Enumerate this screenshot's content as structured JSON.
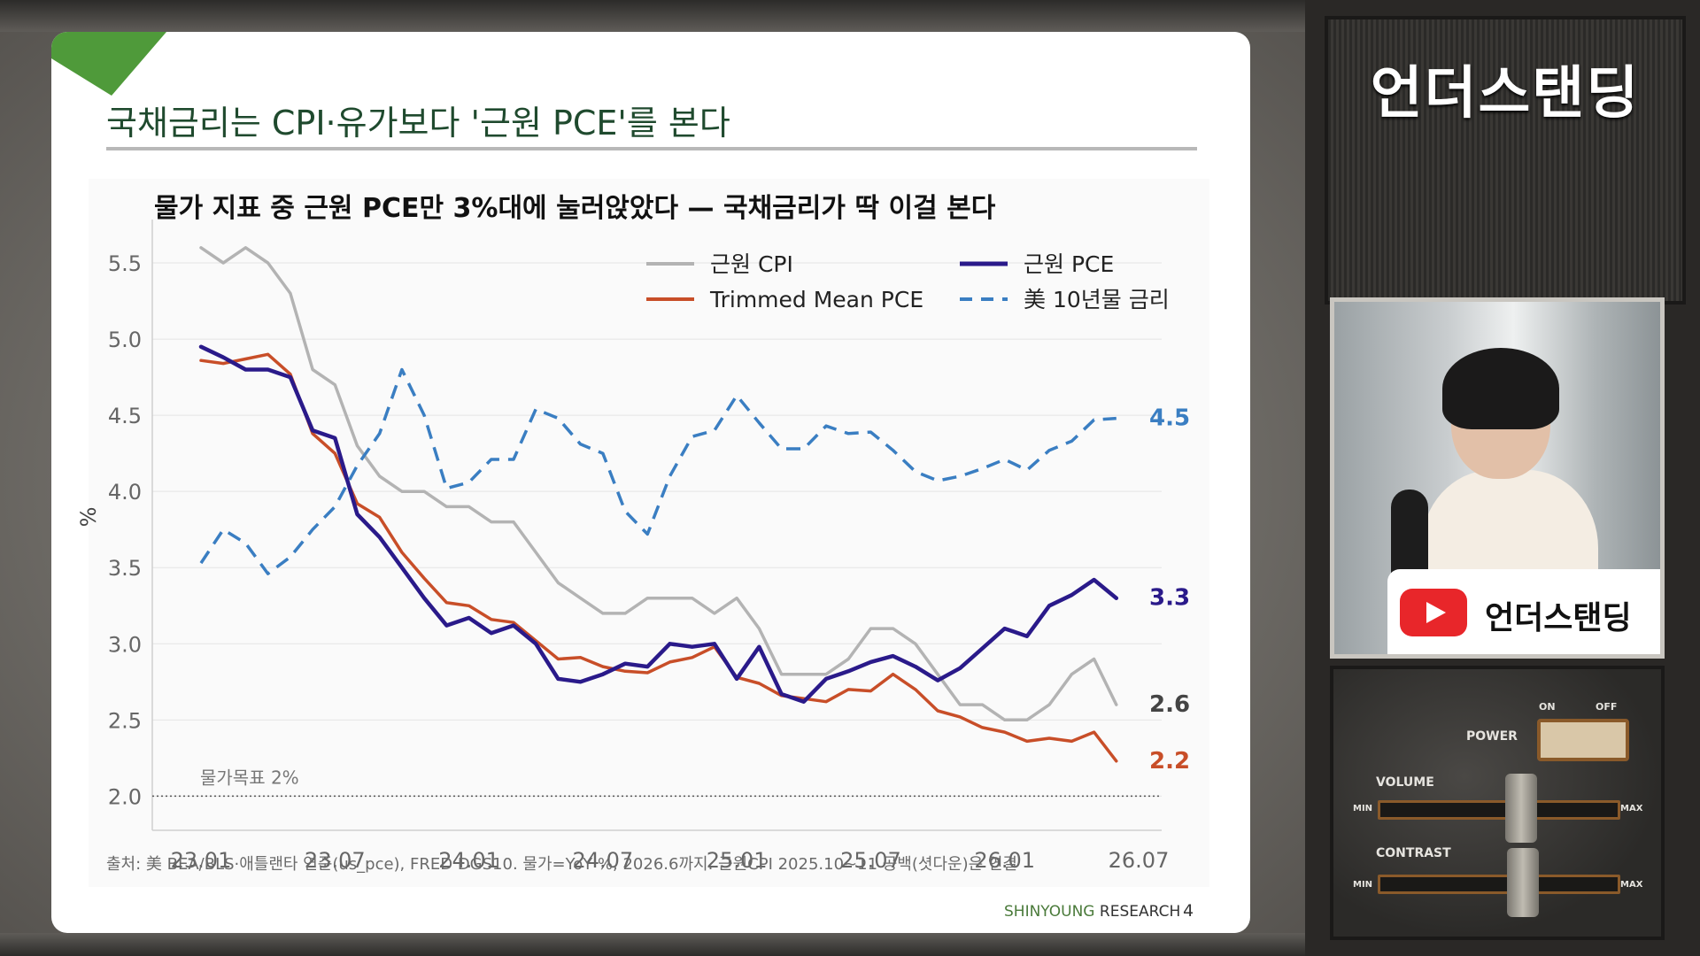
{
  "slide": {
    "title": "국채금리는 CPI·유가보다 '근원 PCE'를 본다",
    "source": "출처: 美 BEA/BLS·애틀랜타 연준(us_pce), FRED DGS10. 물가=YoY %, 2026.6까지. 근원CPI 2025.10~11 공백(셧다운)은 연결",
    "footer_brand_a": "SHINYOUNG",
    "footer_brand_b": "RESEARCH",
    "page_number": "4"
  },
  "channel": {
    "banner_title": "언더스탠딩",
    "youtube_name": "언더스탠딩"
  },
  "tv_controls": {
    "power": "POWER",
    "on": "ON",
    "off": "OFF",
    "volume": "VOLUME",
    "contrast": "CONTRAST",
    "min": "MIN",
    "max": "MAX"
  },
  "chart_data": {
    "type": "line",
    "title": "물가 지표 중 근원 PCE만 3%대에 눌러앉았다 — 국채금리가 딱 이걸 본다",
    "ylabel": "%",
    "xlabel": "",
    "ylim": [
      1.95,
      5.75
    ],
    "y_ticks": [
      "5.5",
      "5.0",
      "4.5",
      "4.0",
      "3.5",
      "3.0",
      "2.5",
      "2.0"
    ],
    "x_ticks": [
      "23.01",
      "23.07",
      "24.01",
      "24.07",
      "25.01",
      "25.07",
      "26.01",
      "26.07"
    ],
    "x_start": "2023-01",
    "grid": true,
    "legend_position": "top-right",
    "reference_line": {
      "value": 2.0,
      "label": "물가목표 2%"
    },
    "series": [
      {
        "name": "근원 CPI",
        "color": "#b3b3b3",
        "style": "solid",
        "end_label": "2.6",
        "values": [
          5.6,
          5.5,
          5.6,
          5.5,
          5.3,
          4.8,
          4.7,
          4.3,
          4.1,
          4.0,
          4.0,
          3.9,
          3.9,
          3.8,
          3.8,
          3.6,
          3.4,
          3.3,
          3.2,
          3.2,
          3.3,
          3.3,
          3.3,
          3.2,
          3.3,
          3.1,
          2.8,
          2.8,
          2.8,
          2.9,
          3.1,
          3.1,
          3.0,
          2.8,
          2.6,
          2.6,
          2.5,
          2.5,
          2.6,
          2.8,
          2.9,
          2.6
        ]
      },
      {
        "name": "근원 PCE",
        "color": "#2a1a8a",
        "style": "solid",
        "end_label": "3.3",
        "values": [
          4.95,
          4.88,
          4.8,
          4.8,
          4.75,
          4.4,
          4.35,
          3.85,
          3.7,
          3.5,
          3.3,
          3.12,
          3.17,
          3.07,
          3.12,
          3.0,
          2.77,
          2.75,
          2.8,
          2.87,
          2.85,
          3.0,
          2.98,
          3.0,
          2.77,
          2.98,
          2.67,
          2.62,
          2.77,
          2.82,
          2.88,
          2.92,
          2.85,
          2.76,
          2.84,
          2.97,
          3.1,
          3.05,
          3.25,
          3.32,
          3.42,
          3.3
        ]
      },
      {
        "name": "Trimmed Mean PCE",
        "color": "#c84e28",
        "style": "solid",
        "end_label": "2.2",
        "values": [
          4.86,
          4.84,
          4.87,
          4.9,
          4.77,
          4.38,
          4.25,
          3.92,
          3.83,
          3.6,
          3.43,
          3.27,
          3.25,
          3.16,
          3.14,
          3.02,
          2.9,
          2.91,
          2.85,
          2.82,
          2.81,
          2.88,
          2.91,
          2.98,
          2.78,
          2.74,
          2.66,
          2.64,
          2.62,
          2.7,
          2.69,
          2.8,
          2.7,
          2.56,
          2.52,
          2.45,
          2.42,
          2.36,
          2.38,
          2.36,
          2.42,
          2.23
        ]
      },
      {
        "name": "美 10년물 금리",
        "color": "#3a7ec2",
        "style": "dashed",
        "end_label": "4.5",
        "values": [
          3.53,
          3.75,
          3.66,
          3.46,
          3.57,
          3.75,
          3.9,
          4.17,
          4.38,
          4.8,
          4.5,
          4.02,
          4.06,
          4.21,
          4.21,
          4.54,
          4.48,
          4.31,
          4.25,
          3.87,
          3.72,
          4.1,
          4.36,
          4.4,
          4.63,
          4.45,
          4.28,
          4.28,
          4.43,
          4.38,
          4.39,
          4.27,
          4.13,
          4.07,
          4.1,
          4.15,
          4.21,
          4.14,
          4.27,
          4.33,
          4.47,
          4.48
        ]
      }
    ]
  }
}
